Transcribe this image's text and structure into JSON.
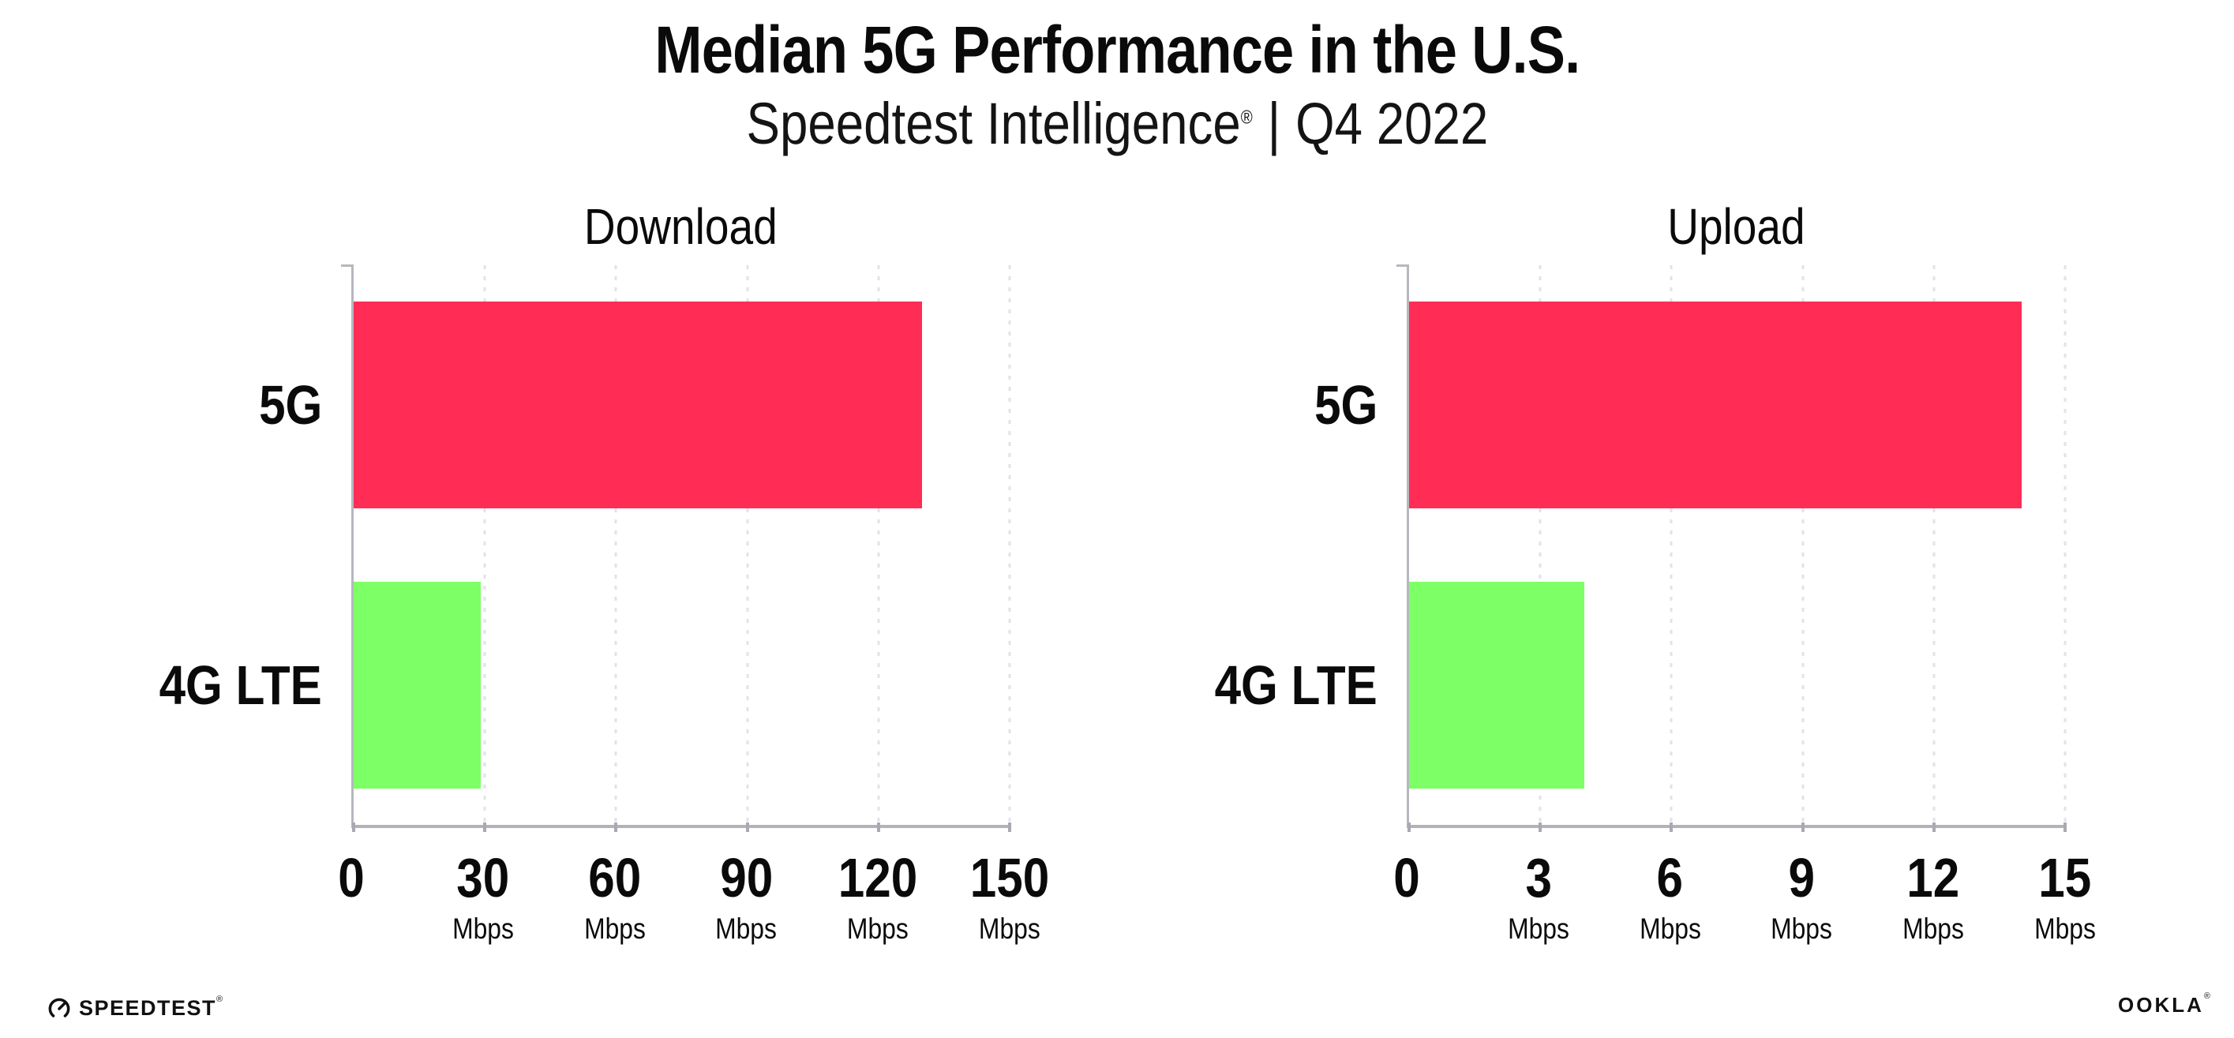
{
  "header": {
    "title": "Median 5G Performance in the U.S.",
    "subtitle": {
      "brand": "Speedtest Intelligence",
      "registered_mark": "®",
      "separator": "|",
      "period": "Q4 2022"
    }
  },
  "footer": {
    "speedtest_logo_text": "SPEEDTEST",
    "speedtest_logo_mark": "®",
    "ookla_logo_text": "OOKLA",
    "ookla_logo_mark": "®"
  },
  "colors": {
    "bar_5g": "#FF2D55",
    "bar_4g_lte": "#7DFF66",
    "axis": "#b2b2ba",
    "gridline": "#e2e2e9",
    "text": "#0a0a0a"
  },
  "chart_data": [
    {
      "type": "bar",
      "orientation": "horizontal",
      "title": "Download",
      "categories": [
        "5G",
        "4G LTE"
      ],
      "values": [
        130,
        29
      ],
      "unit": "Mbps",
      "xlabel": "",
      "ylabel": "",
      "xlim": [
        0,
        150
      ],
      "xticks": [
        0,
        30,
        60,
        90,
        120,
        150
      ],
      "bar_colors": [
        "#FF2D55",
        "#7DFF66"
      ],
      "grid": "dotted vertical gridlines at each tick",
      "legend": "none"
    },
    {
      "type": "bar",
      "orientation": "horizontal",
      "title": "Upload",
      "categories": [
        "5G",
        "4G LTE"
      ],
      "values": [
        14,
        4
      ],
      "unit": "Mbps",
      "xlabel": "",
      "ylabel": "",
      "xlim": [
        0,
        15
      ],
      "xticks": [
        0,
        3,
        6,
        9,
        12,
        15
      ],
      "bar_colors": [
        "#FF2D55",
        "#7DFF66"
      ],
      "grid": "dotted vertical gridlines at each tick",
      "legend": "none"
    }
  ]
}
